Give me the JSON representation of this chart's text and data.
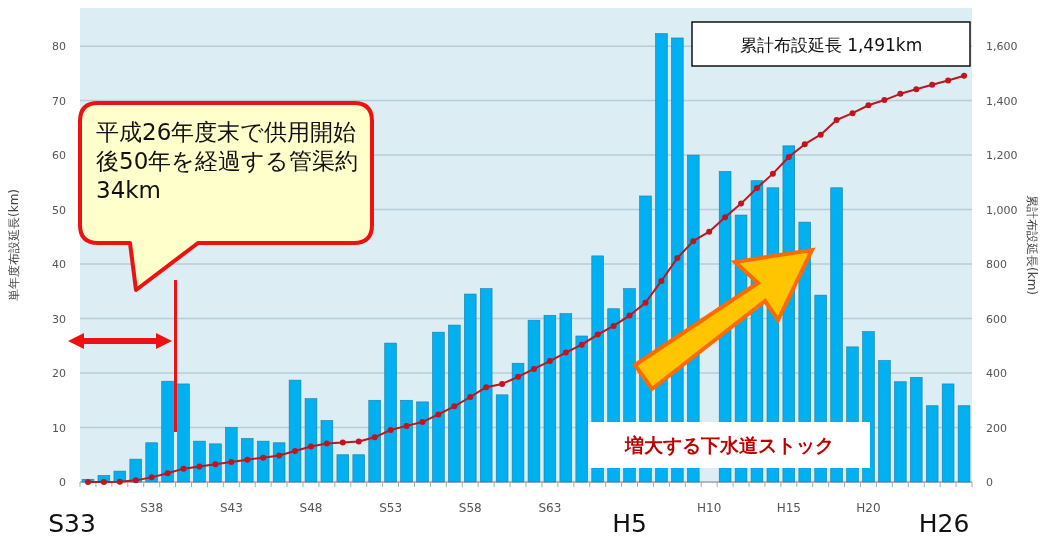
{
  "chart_data": {
    "type": "bar",
    "ylabel": "単年度布設延長(km)",
    "y2label": "累計布設延長(km)",
    "categories": [
      null,
      null,
      null,
      null,
      "S38",
      null,
      null,
      null,
      null,
      "S43",
      null,
      null,
      null,
      null,
      "S48",
      null,
      null,
      null,
      null,
      "S53",
      null,
      null,
      null,
      null,
      "S58",
      null,
      null,
      null,
      null,
      "S63",
      null,
      null,
      null,
      null,
      null,
      null,
      null,
      null,
      null,
      "H10",
      null,
      null,
      null,
      null,
      "H15",
      null,
      null,
      null,
      null,
      "H20",
      null,
      null,
      null,
      null,
      null,
      null
    ],
    "series": [
      {
        "color": "#00b0f0",
        "values": [
          0.5,
          1.2,
          2,
          4.2,
          7.2,
          18.5,
          18,
          7.5,
          7,
          10,
          8,
          7.5,
          7.2,
          18.7,
          15.3,
          11.3,
          5,
          5,
          15,
          25.5,
          15,
          14.7,
          27.5,
          28.8,
          34.5,
          35.5,
          16,
          21.8,
          29.7,
          30.6,
          30.9,
          26.8,
          41.5,
          31.8,
          35.5,
          52.5,
          82.3,
          81.5,
          60,
          null,
          57,
          49,
          55.3,
          54,
          61.7,
          47.7,
          34.3,
          54,
          24.8,
          27.6,
          22.3,
          18.4,
          19.2,
          14,
          18,
          14
        ]
      },
      {
        "type": "line",
        "axis": "y2",
        "color": "#c0141e",
        "values": [
          0,
          0,
          1,
          6,
          17,
          32,
          49,
          57,
          65,
          73,
          82,
          89,
          97,
          114,
          130,
          141,
          145,
          149,
          164,
          191,
          206,
          220,
          248,
          278,
          312,
          348,
          360,
          386,
          415,
          444,
          475,
          504,
          541,
          573,
          611,
          658,
          738,
          822,
          884,
          919,
          972,
          1022,
          1079,
          1132,
          1193,
          1240,
          1275,
          1329,
          1354,
          1383,
          1402,
          1425,
          1442,
          1458,
          1474,
          1491
        ]
      }
    ],
    "ylim": [
      0,
      87
    ],
    "yticks": [
      0,
      10,
      20,
      30,
      40,
      50,
      60,
      70,
      80
    ],
    "y2lim": [
      0,
      1740
    ],
    "y2ticks": [
      {
        "value": 0,
        "label": "0"
      },
      {
        "value": 200,
        "label": "200"
      },
      {
        "value": 400,
        "label": "400"
      },
      {
        "value": 600,
        "label": "600"
      },
      {
        "value": 800,
        "label": "800"
      },
      {
        "value": 1000,
        "label": "1,000"
      },
      {
        "value": 1200,
        "label": "1,200"
      },
      {
        "value": 1400,
        "label": "1,400"
      },
      {
        "value": 1600,
        "label": "1,600"
      }
    ],
    "grid": "y",
    "marker": "circle",
    "line_style": "solid",
    "annotations": [
      "平成26年度末で供用開始後50年を経過する管渠約34km",
      "累計布設延長 1,491km",
      "増大する下水道ストック",
      "S33",
      "H5",
      "H26"
    ]
  }
}
